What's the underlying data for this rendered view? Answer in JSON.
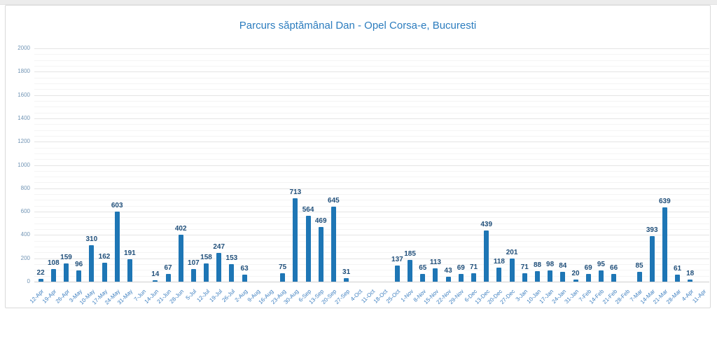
{
  "chart_data": {
    "type": "bar",
    "title": "Parcurs săptămânal Dan - Opel Corsa-e, Bucuresti",
    "categories": [
      "12-Apr",
      "19-Apr",
      "26-Apr",
      "3-May",
      "10-May",
      "17-May",
      "24-May",
      "31-May",
      "7-Jun",
      "14-Jun",
      "21-Jun",
      "28-Jun",
      "5-Jul",
      "12-Jul",
      "19-Jul",
      "26-Jul",
      "2-Aug",
      "9-Aug",
      "16-Aug",
      "23-Aug",
      "30-Aug",
      "6-Sep",
      "13-Sep",
      "20-Sep",
      "27-Sep",
      "4-Oct",
      "11-Oct",
      "18-Oct",
      "25-Oct",
      "1-Nov",
      "8-Nov",
      "15-Nov",
      "22-Nov",
      "29-Nov",
      "6-Dec",
      "13-Dec",
      "20-Dec",
      "27-Dec",
      "3-Jan",
      "10-Jan",
      "17-Jan",
      "24-Jan",
      "31-Jan",
      "7-Feb",
      "14-Feb",
      "21-Feb",
      "28-Feb",
      "7-Mar",
      "14-Mar",
      "21-Mar",
      "28-Mar",
      "4-Apr",
      "11-Apr"
    ],
    "values": [
      22,
      108,
      159,
      96,
      310,
      162,
      603,
      191,
      null,
      14,
      67,
      402,
      107,
      158,
      247,
      153,
      63,
      null,
      null,
      75,
      713,
      564,
      469,
      645,
      31,
      null,
      null,
      null,
      137,
      185,
      65,
      113,
      43,
      69,
      71,
      439,
      118,
      201,
      71,
      88,
      98,
      84,
      20,
      69,
      95,
      66,
      null,
      85,
      393,
      639,
      61,
      18,
      null
    ],
    "xlabel": "",
    "ylabel": "",
    "ylim": [
      0,
      2000
    ],
    "yticks": [
      0,
      200,
      400,
      600,
      800,
      1000,
      1200,
      1400,
      1600,
      1800,
      2000
    ],
    "major_grid_step": 200,
    "minor_grid_step": 50,
    "grid": true,
    "legend_position": "none",
    "data_labels": true,
    "colors": {
      "bar": "#1e76b5",
      "value_label": "#1f4e79",
      "x_tick_label": "#3c7ebf",
      "y_tick_label": "#7295b5",
      "title": "#2b7cbe"
    }
  }
}
